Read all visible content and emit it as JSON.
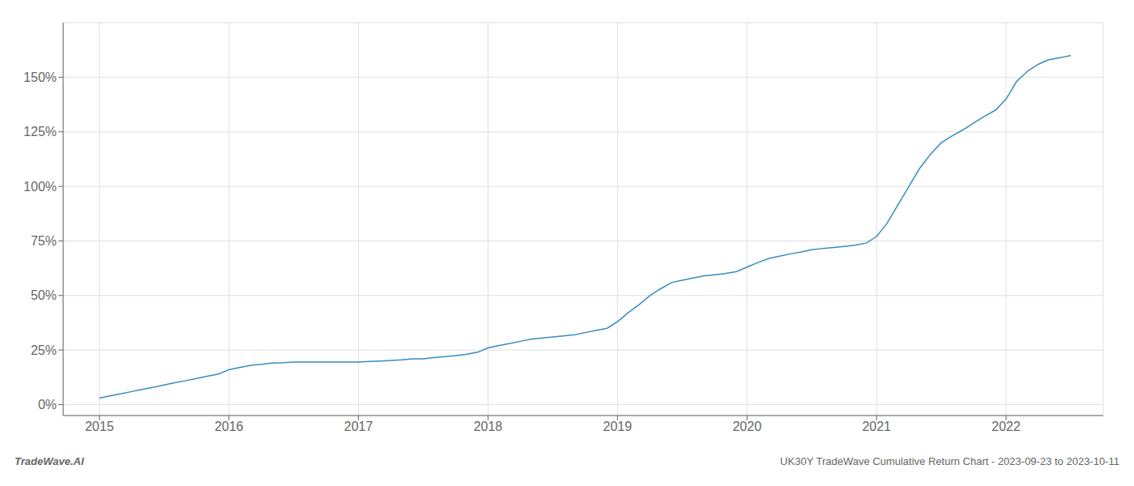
{
  "chart_data": {
    "type": "line",
    "annotations": [
      "TradeWave.AI",
      "UK30Y TradeWave Cumulative Return Chart - 2023-09-23 to 2023-10-11"
    ],
    "x": [
      2015.0,
      2015.08,
      2015.17,
      2015.25,
      2015.33,
      2015.42,
      2015.5,
      2015.58,
      2015.67,
      2015.75,
      2015.83,
      2015.92,
      2016.0,
      2016.08,
      2016.17,
      2016.25,
      2016.33,
      2016.42,
      2016.5,
      2016.58,
      2016.67,
      2016.75,
      2016.83,
      2016.92,
      2017.0,
      2017.08,
      2017.17,
      2017.25,
      2017.33,
      2017.42,
      2017.5,
      2017.58,
      2017.67,
      2017.75,
      2017.83,
      2017.92,
      2018.0,
      2018.08,
      2018.17,
      2018.25,
      2018.33,
      2018.42,
      2018.5,
      2018.58,
      2018.67,
      2018.75,
      2018.83,
      2018.92,
      2019.0,
      2019.08,
      2019.17,
      2019.25,
      2019.33,
      2019.42,
      2019.5,
      2019.58,
      2019.67,
      2019.75,
      2019.83,
      2019.92,
      2020.0,
      2020.08,
      2020.17,
      2020.25,
      2020.33,
      2020.42,
      2020.5,
      2020.58,
      2020.67,
      2020.75,
      2020.83,
      2020.92,
      2021.0,
      2021.08,
      2021.17,
      2021.25,
      2021.33,
      2021.42,
      2021.5,
      2021.58,
      2021.67,
      2021.75,
      2021.83,
      2021.92,
      2022.0,
      2022.08,
      2022.17,
      2022.25,
      2022.33,
      2022.42,
      2022.5
    ],
    "values": [
      3,
      4,
      5,
      6,
      7,
      8,
      9,
      10,
      11,
      12,
      13,
      14,
      16,
      17,
      18,
      18.5,
      19,
      19.2,
      19.5,
      19.5,
      19.5,
      19.5,
      19.5,
      19.5,
      19.5,
      19.8,
      20,
      20.2,
      20.5,
      21,
      21,
      21.5,
      22,
      22.5,
      23,
      24,
      26,
      27,
      28,
      29,
      30,
      30.5,
      31,
      31.5,
      32,
      33,
      34,
      35,
      38,
      42,
      46,
      50,
      53,
      56,
      57,
      58,
      59,
      59.5,
      60,
      61,
      63,
      65,
      67,
      68,
      69,
      70,
      71,
      71.5,
      72,
      72.5,
      73,
      74,
      77,
      83,
      92,
      100,
      108,
      115,
      120,
      123,
      126,
      129,
      132,
      135,
      140,
      148,
      153,
      156,
      158,
      159,
      160
    ],
    "color": "#3a8bbf",
    "xlim": [
      2014.72,
      2022.75
    ],
    "xticks": [
      2015,
      2016,
      2017,
      2018,
      2019,
      2020,
      2021,
      2022
    ],
    "ylim": [
      -5,
      175
    ],
    "yticks": [
      {
        "value": 0,
        "label": "0%"
      },
      {
        "value": 25,
        "label": "25%"
      },
      {
        "value": 50,
        "label": "50%"
      },
      {
        "value": 75,
        "label": "75%"
      },
      {
        "value": 100,
        "label": "100%"
      },
      {
        "value": 125,
        "label": "125%"
      },
      {
        "value": 150,
        "label": "150%"
      }
    ],
    "grid": true
  }
}
